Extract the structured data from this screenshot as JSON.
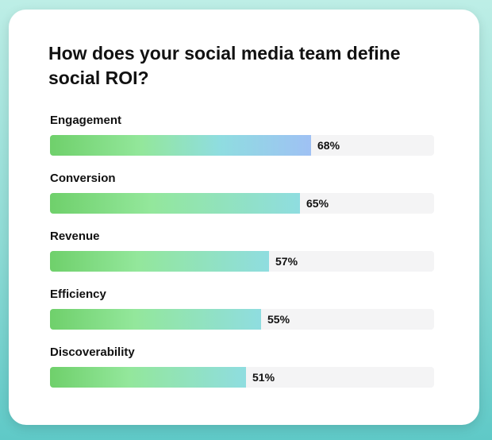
{
  "chart_data": {
    "type": "bar",
    "orientation": "horizontal",
    "title": "How does your social media team define social ROI?",
    "categories": [
      "Engagement",
      "Conversion",
      "Revenue",
      "Efficiency",
      "Discoverability"
    ],
    "values": [
      68,
      65,
      57,
      55,
      51
    ],
    "value_labels": [
      "68%",
      "65%",
      "57%",
      "55%",
      "51%"
    ],
    "xlim": [
      0,
      100
    ],
    "grid": false,
    "legend": "none",
    "colors": {
      "bar_gradient_start": "#6fd06b",
      "bar_gradient_mid": "#93e79b",
      "bar_gradient_cyan": "#8fdde0",
      "bar_gradient_end": "#9fc1f4",
      "track": "#f4f4f5"
    }
  }
}
